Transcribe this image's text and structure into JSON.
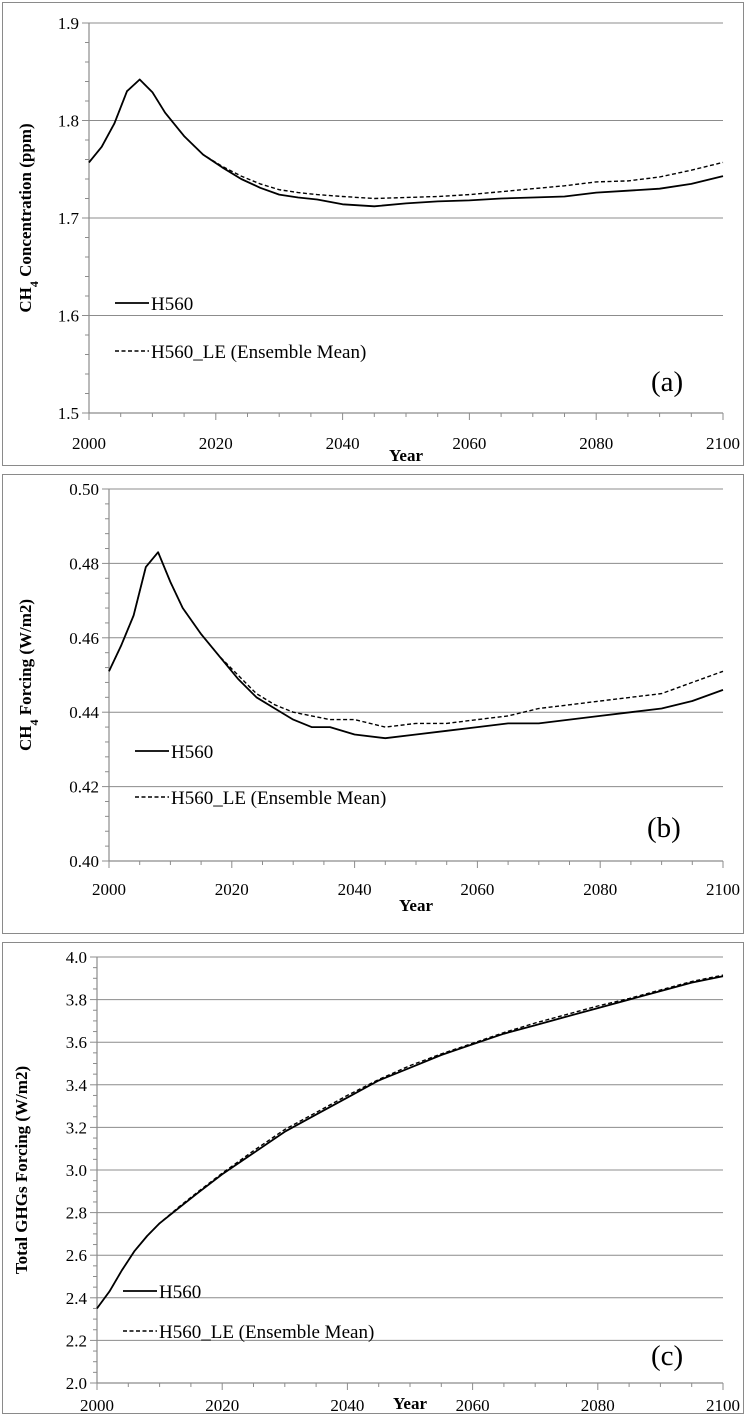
{
  "chart_data": [
    {
      "type": "line",
      "panel_label": "(a)",
      "xlabel": "Year",
      "ylabel": "CH₄ Concentration (ppm)",
      "xlim": [
        2000,
        2100
      ],
      "ylim": [
        1.5,
        1.9
      ],
      "xticks": [
        "2000",
        "2020",
        "2040",
        "2060",
        "2080",
        "2100"
      ],
      "yticks": [
        "1.5",
        "1.6",
        "1.7",
        "1.8",
        "1.9"
      ],
      "grid": "horizontal",
      "legend_position": "bottom-left",
      "series": [
        {
          "name": "H560",
          "style": "solid",
          "x": [
            2000,
            2002,
            2004,
            2006,
            2008,
            2010,
            2012,
            2015,
            2018,
            2021,
            2024,
            2027,
            2030,
            2033,
            2036,
            2040,
            2045,
            2050,
            2055,
            2060,
            2065,
            2070,
            2075,
            2080,
            2085,
            2090,
            2095,
            2100
          ],
          "y": [
            1.757,
            1.773,
            1.797,
            1.83,
            1.842,
            1.829,
            1.808,
            1.784,
            1.765,
            1.752,
            1.74,
            1.731,
            1.724,
            1.721,
            1.719,
            1.714,
            1.712,
            1.715,
            1.717,
            1.718,
            1.72,
            1.721,
            1.722,
            1.726,
            1.728,
            1.73,
            1.735,
            1.743
          ]
        },
        {
          "name": "H560_LE (Ensemble Mean)",
          "style": "dashed",
          "x": [
            2000,
            2002,
            2004,
            2006,
            2008,
            2010,
            2012,
            2015,
            2018,
            2021,
            2024,
            2027,
            2030,
            2033,
            2036,
            2040,
            2045,
            2050,
            2055,
            2060,
            2065,
            2070,
            2075,
            2080,
            2085,
            2090,
            2095,
            2100
          ],
          "y": [
            1.757,
            1.773,
            1.797,
            1.83,
            1.842,
            1.829,
            1.808,
            1.784,
            1.765,
            1.753,
            1.743,
            1.735,
            1.729,
            1.726,
            1.724,
            1.722,
            1.72,
            1.721,
            1.722,
            1.724,
            1.727,
            1.73,
            1.733,
            1.737,
            1.738,
            1.742,
            1.749,
            1.757
          ]
        }
      ]
    },
    {
      "type": "line",
      "panel_label": "(b)",
      "xlabel": "Year",
      "ylabel": "CH₄ Forcing (W/m2)",
      "xlim": [
        2000,
        2100
      ],
      "ylim": [
        0.4,
        0.5
      ],
      "xticks": [
        "2000",
        "2020",
        "2040",
        "2060",
        "2080",
        "2100"
      ],
      "yticks": [
        "0.40",
        "0.42",
        "0.44",
        "0.46",
        "0.48",
        "0.50"
      ],
      "grid": "horizontal",
      "legend_position": "bottom-left",
      "series": [
        {
          "name": "H560",
          "style": "solid",
          "x": [
            2000,
            2002,
            2004,
            2006,
            2008,
            2010,
            2012,
            2015,
            2018,
            2021,
            2024,
            2027,
            2030,
            2033,
            2036,
            2040,
            2045,
            2050,
            2055,
            2060,
            2065,
            2070,
            2075,
            2080,
            2085,
            2090,
            2095,
            2100
          ],
          "y": [
            0.451,
            0.458,
            0.466,
            0.479,
            0.483,
            0.475,
            0.468,
            0.461,
            0.455,
            0.449,
            0.444,
            0.441,
            0.438,
            0.436,
            0.436,
            0.434,
            0.433,
            0.434,
            0.435,
            0.436,
            0.437,
            0.437,
            0.438,
            0.439,
            0.44,
            0.441,
            0.443,
            0.446
          ]
        },
        {
          "name": "H560_LE (Ensemble Mean)",
          "style": "dashed",
          "x": [
            2000,
            2002,
            2004,
            2006,
            2008,
            2010,
            2012,
            2015,
            2018,
            2021,
            2024,
            2027,
            2030,
            2033,
            2036,
            2040,
            2045,
            2050,
            2055,
            2060,
            2065,
            2070,
            2075,
            2080,
            2085,
            2090,
            2095,
            2100
          ],
          "y": [
            0.451,
            0.458,
            0.466,
            0.479,
            0.483,
            0.475,
            0.468,
            0.461,
            0.455,
            0.45,
            0.445,
            0.442,
            0.44,
            0.439,
            0.438,
            0.438,
            0.436,
            0.437,
            0.437,
            0.438,
            0.439,
            0.441,
            0.442,
            0.443,
            0.444,
            0.445,
            0.448,
            0.451
          ]
        }
      ]
    },
    {
      "type": "line",
      "panel_label": "(c)",
      "xlabel": "Year",
      "ylabel": "Total GHGs Forcing (W/m2)",
      "xlim": [
        2000,
        2100
      ],
      "ylim": [
        2.0,
        4.0
      ],
      "xticks": [
        "2000",
        "2020",
        "2040",
        "2060",
        "2080",
        "2100"
      ],
      "yticks": [
        "2.0",
        "2.2",
        "2.4",
        "2.6",
        "2.8",
        "3.0",
        "3.2",
        "3.4",
        "3.6",
        "3.8",
        "4.0"
      ],
      "grid": "horizontal",
      "legend_position": "bottom-left",
      "series": [
        {
          "name": "H560",
          "style": "solid",
          "x": [
            2000,
            2002,
            2004,
            2006,
            2008,
            2010,
            2013,
            2016,
            2020,
            2025,
            2030,
            2035,
            2040,
            2045,
            2050,
            2055,
            2060,
            2065,
            2070,
            2075,
            2080,
            2085,
            2090,
            2095,
            2100
          ],
          "y": [
            2.35,
            2.43,
            2.53,
            2.62,
            2.69,
            2.75,
            2.82,
            2.89,
            2.98,
            3.08,
            3.18,
            3.26,
            3.34,
            3.42,
            3.48,
            3.54,
            3.59,
            3.64,
            3.68,
            3.72,
            3.76,
            3.8,
            3.84,
            3.88,
            3.91
          ]
        },
        {
          "name": "H560_LE (Ensemble Mean)",
          "style": "dashed",
          "x": [
            2000,
            2002,
            2004,
            2006,
            2008,
            2010,
            2013,
            2016,
            2020,
            2025,
            2030,
            2035,
            2040,
            2045,
            2050,
            2055,
            2060,
            2065,
            2070,
            2075,
            2080,
            2085,
            2090,
            2095,
            2100
          ],
          "y": [
            2.35,
            2.43,
            2.53,
            2.62,
            2.69,
            2.75,
            2.825,
            2.895,
            2.985,
            3.09,
            3.19,
            3.27,
            3.35,
            3.425,
            3.49,
            3.545,
            3.595,
            3.645,
            3.69,
            3.73,
            3.77,
            3.805,
            3.845,
            3.885,
            3.915
          ]
        }
      ]
    }
  ]
}
